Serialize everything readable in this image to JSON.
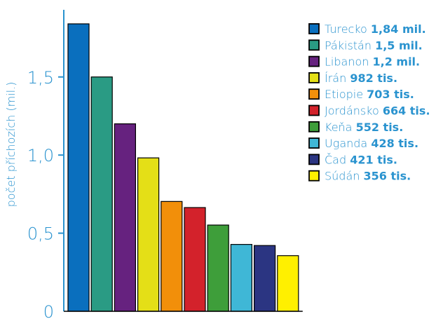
{
  "chart_data": {
    "type": "bar",
    "ylabel": "počet příchozích (mil.)",
    "xlabel": "",
    "ylim": [
      0,
      1.95
    ],
    "yticks": [
      {
        "value": 0,
        "label": "0"
      },
      {
        "value": 0.5,
        "label": "0,5"
      },
      {
        "value": 1.0,
        "label": "1,0"
      },
      {
        "value": 1.5,
        "label": "1,5"
      }
    ],
    "grid": false,
    "legend_position": "top-right",
    "categories": [
      "Turecko",
      "Pákistán",
      "Libanon",
      "Írán",
      "Etiopie",
      "Jordánsko",
      "Keňa",
      "Uganda",
      "Čad",
      "Súdán"
    ],
    "values": [
      1.84,
      1.5,
      1.2,
      0.982,
      0.703,
      0.664,
      0.552,
      0.428,
      0.421,
      0.356
    ],
    "value_labels": [
      "1,84 mil.",
      "1,5 mil.",
      "1,2 mil.",
      "982 tis.",
      "703 tis.",
      "664 tis.",
      "552 tis.",
      "428 tis.",
      "421 tis.",
      "356 tis."
    ],
    "colors": [
      "#0a6fbe",
      "#2a9b84",
      "#66227f",
      "#e4df17",
      "#f28f0a",
      "#d3222b",
      "#3e9e3a",
      "#3fb7d6",
      "#2b3582",
      "#fff000"
    ]
  },
  "style": {
    "axis_color": "#2a93cf",
    "label_color": "#2a93cf",
    "bar_stroke": "#000000"
  }
}
